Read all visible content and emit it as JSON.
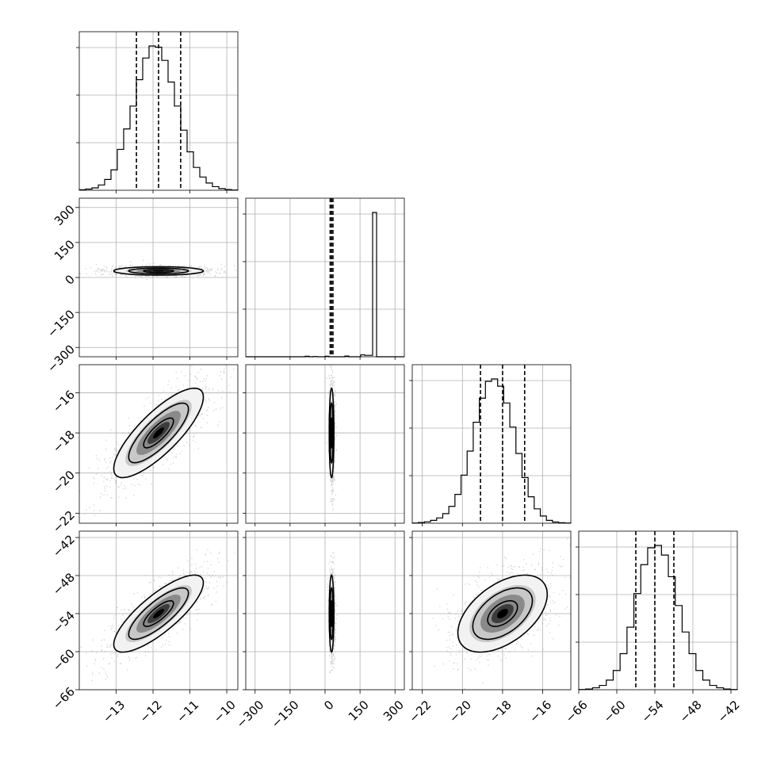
{
  "chart_data": {
    "type": "corner",
    "description_of_layout": "lower-triangular matrix of 4 parameters: histograms on diagonal, 2D density contours off-diagonal",
    "grid": true,
    "parameters": [
      {
        "range": [
          -14.0,
          -9.7
        ],
        "ticks": [
          -13,
          -12,
          -11,
          -10
        ],
        "tick_labels": [
          "−13",
          "−12",
          "−11",
          "−10"
        ],
        "median": -11.85,
        "q16": -12.45,
        "q84": -11.25,
        "hist": [
          2,
          5,
          10,
          22,
          45,
          85,
          170,
          255,
          350,
          460,
          550,
          600,
          595,
          540,
          450,
          350,
          250,
          160,
          95,
          55,
          30,
          15,
          7,
          3,
          1
        ]
      },
      {
        "range": [
          -340,
          340
        ],
        "ticks": [
          -300,
          -150,
          0,
          150,
          300
        ],
        "tick_labels": [
          "−300",
          "−150",
          "0",
          "150",
          "300"
        ],
        "median": 28,
        "q16": 22,
        "q84": 34,
        "hist": [
          0,
          0,
          0,
          0,
          0,
          0,
          0,
          0,
          0,
          0,
          0,
          0,
          0,
          0,
          0,
          2,
          0,
          1,
          0,
          0,
          2,
          0,
          0,
          0,
          0,
          3,
          0,
          0,
          0,
          8,
          6,
          6,
          600,
          0,
          0,
          0,
          0,
          0,
          0,
          0
        ]
      },
      {
        "range": [
          -22.5,
          -14.6
        ],
        "ticks": [
          -22,
          -20,
          -18,
          -16
        ],
        "tick_labels": [
          "−22",
          "−20",
          "−18",
          "−16"
        ],
        "median": -18.0,
        "q16": -19.1,
        "q84": -16.9,
        "hist": [
          1,
          3,
          6,
          12,
          22,
          40,
          70,
          120,
          200,
          300,
          420,
          520,
          590,
          600,
          570,
          500,
          400,
          290,
          190,
          110,
          60,
          30,
          12,
          5,
          2,
          1
        ]
      },
      {
        "range": [
          -66,
          -41
        ],
        "ticks": [
          -66,
          -60,
          -54,
          -48,
          -42
        ],
        "tick_labels": [
          "−66",
          "−60",
          "−54",
          "−48",
          "−42"
        ],
        "median": -54,
        "q16": -57,
        "q84": -51,
        "hist": [
          1,
          3,
          8,
          18,
          40,
          80,
          150,
          260,
          400,
          520,
          590,
          600,
          560,
          470,
          350,
          240,
          150,
          80,
          40,
          18,
          8,
          3,
          1
        ]
      }
    ],
    "pairs": [
      {
        "x": 0,
        "y": 1,
        "mean": [
          -11.85,
          28
        ],
        "sd": [
          0.6,
          9
        ],
        "rho": 0.0
      },
      {
        "x": 0,
        "y": 2,
        "mean": [
          -11.85,
          -18.0
        ],
        "sd": [
          0.6,
          1.1
        ],
        "rho": 0.8
      },
      {
        "x": 1,
        "y": 2,
        "mean": [
          28,
          -18.0
        ],
        "sd": [
          5,
          1.1
        ],
        "rho": 0.0
      },
      {
        "x": 0,
        "y": 3,
        "mean": [
          -11.85,
          -54
        ],
        "sd": [
          0.6,
          3.0
        ],
        "rho": 0.8
      },
      {
        "x": 1,
        "y": 3,
        "mean": [
          28,
          -54
        ],
        "sd": [
          5,
          3.0
        ],
        "rho": 0.0
      },
      {
        "x": 2,
        "y": 3,
        "mean": [
          -18.0,
          -54
        ],
        "sd": [
          1.1,
          3.0
        ],
        "rho": 0.5
      }
    ],
    "contour_levels_sigma": [
      0.5,
      1.0,
      1.5,
      2.0
    ],
    "colors": {
      "ink": "#000000",
      "grid": "#b0b0b0",
      "points": "#808080"
    }
  }
}
